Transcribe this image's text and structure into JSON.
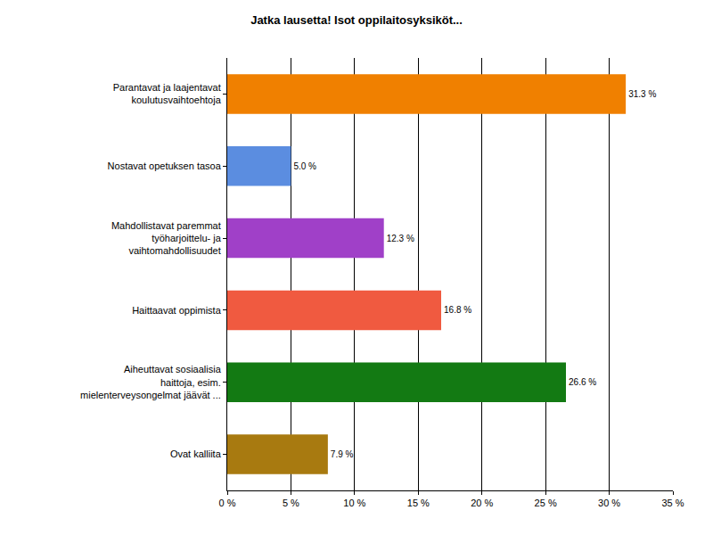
{
  "chart_data": {
    "type": "bar",
    "title": "Jatka lausetta! Isot oppilaitosyksiköt...",
    "orientation": "horizontal",
    "categories": [
      "Parantavat ja laajentavat koulutusvaihtoehtoja",
      "Nostavat opetuksen tasoa",
      "Mahdollistavat paremmat työharjoittelu- ja vaihtomahdollisuudet",
      "Haittaavat oppimista",
      "Aiheuttavat sosiaalisia haittoja, esim. mielenterveysongelmat jäävät ...",
      "Ovat kalliita"
    ],
    "values": [
      31.3,
      5.0,
      12.3,
      16.8,
      26.6,
      7.9
    ],
    "value_labels": [
      "31.3 %",
      "5.0 %",
      "12.3 %",
      "16.8 %",
      "26.6 %",
      "7.9 %"
    ],
    "colors": [
      "#f08000",
      "#5b8de0",
      "#a040c8",
      "#f05a40",
      "#137a13",
      "#a87a10"
    ],
    "xlim": [
      0,
      35
    ],
    "xticks": [
      {
        "value": 0,
        "label": "0 %"
      },
      {
        "value": 5,
        "label": "5 %"
      },
      {
        "value": 10,
        "label": "10 %"
      },
      {
        "value": 15,
        "label": "15 %"
      },
      {
        "value": 20,
        "label": "20 %"
      },
      {
        "value": 25,
        "label": "25 %"
      },
      {
        "value": 30,
        "label": "30 %"
      },
      {
        "value": 35,
        "label": "35 %"
      }
    ],
    "grid": true,
    "data_labels": true
  }
}
